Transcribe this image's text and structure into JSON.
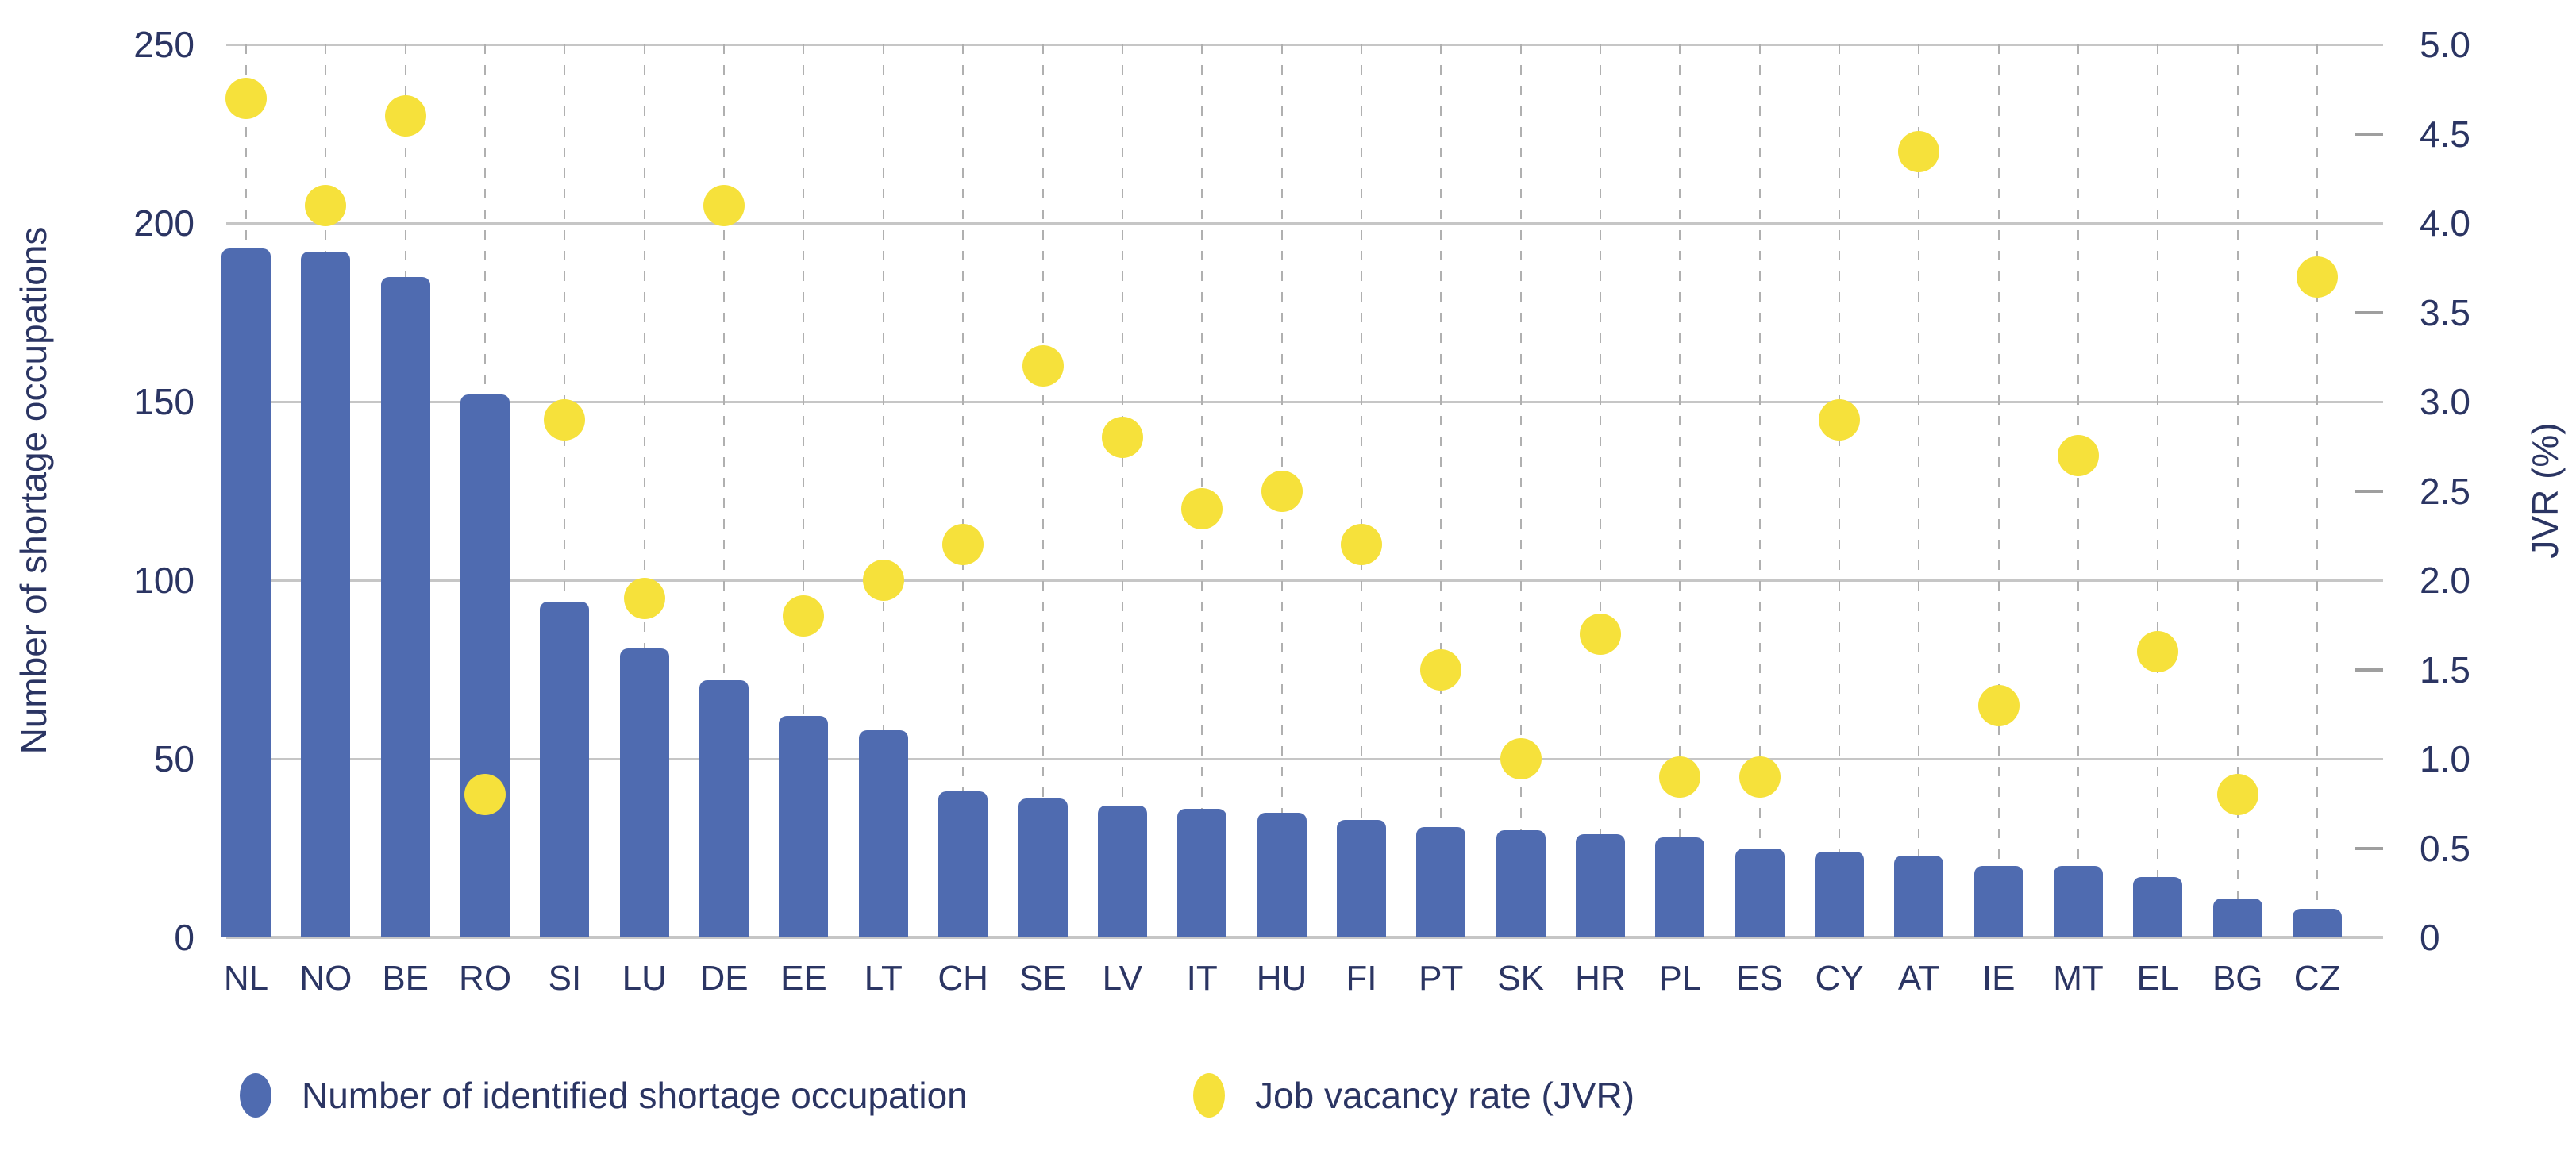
{
  "chart_data": {
    "type": "bar",
    "subtype": "combo-bar-scatter",
    "categories": [
      "NL",
      "NO",
      "BE",
      "RO",
      "SI",
      "LU",
      "DE",
      "EE",
      "LT",
      "CH",
      "SE",
      "LV",
      "IT",
      "HU",
      "FI",
      "PT",
      "SK",
      "HR",
      "PL",
      "ES",
      "CY",
      "AT",
      "IE",
      "MT",
      "EL",
      "BG",
      "CZ"
    ],
    "series": [
      {
        "name": "Number of identified shortage occupation",
        "type": "bar",
        "axis": "left",
        "color": "#4f6bb0",
        "values": [
          193,
          192,
          185,
          152,
          94,
          81,
          72,
          62,
          58,
          41,
          39,
          37,
          36,
          35,
          33,
          31,
          30,
          29,
          28,
          25,
          24,
          23,
          20,
          20,
          17,
          11,
          8
        ]
      },
      {
        "name": "Job vacancy rate (JVR)",
        "type": "scatter",
        "axis": "right",
        "color": "#f6e13b",
        "values": [
          4.7,
          4.1,
          4.6,
          0.8,
          2.9,
          1.9,
          4.1,
          1.8,
          2.0,
          2.2,
          3.2,
          2.8,
          2.4,
          2.5,
          2.2,
          1.5,
          1.0,
          1.7,
          0.9,
          0.9,
          2.9,
          4.4,
          1.3,
          2.7,
          1.6,
          0.8,
          3.7
        ]
      }
    ],
    "left_axis": {
      "title": "Number of shortage occupations",
      "min": 0,
      "max": 250,
      "tick_labels": [
        "250",
        "200",
        "150",
        "100",
        "50",
        "0"
      ],
      "tick_values": [
        250,
        200,
        150,
        100,
        50,
        0
      ]
    },
    "right_axis": {
      "title": "JVR (%)",
      "min": 0,
      "max": 5,
      "tick_labels": [
        "5.0",
        "4.5",
        "4.0",
        "3.5",
        "3.0",
        "2.5",
        "2.0",
        "1.5",
        "1.0",
        "0.5",
        "0"
      ],
      "tick_values": [
        5,
        4.5,
        4,
        3.5,
        3,
        2.5,
        2,
        1.5,
        1,
        0.5,
        0
      ],
      "major_tick_values": [
        5,
        4,
        3,
        2,
        1,
        0
      ],
      "minor_tick_values": [
        4.5,
        3.5,
        2.5,
        1.5,
        0.5
      ]
    },
    "grid": "horizontal solid lines at each 50 / 1.0 step, vertical dashed guide per category",
    "legend_position": "bottom-left",
    "legend": [
      {
        "label": "Number of identified shortage occupation",
        "marker_color": "#4f6bb0"
      },
      {
        "label": "Job vacancy rate (JVR)",
        "marker_color": "#f6e13b"
      }
    ]
  },
  "colors": {
    "bar": "#4f6bb0",
    "dot": "#f6e13b",
    "text": "#2b3563",
    "gridline": "#c6c6c6",
    "dashed_guide": "#b0b0b0",
    "minor_tick": "#9f9f9f",
    "background": "#ffffff"
  }
}
